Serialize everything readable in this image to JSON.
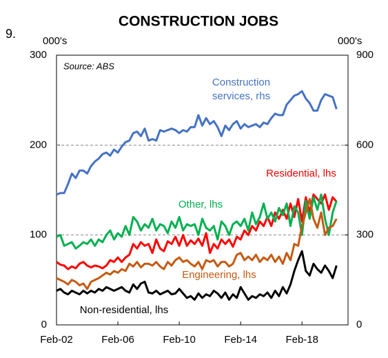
{
  "chart_data": {
    "type": "line",
    "number": "9.",
    "title": "CONSTRUCTION JOBS",
    "y_unit": "000's",
    "y2_unit": "000's",
    "source": "Source: ABS",
    "categories": [
      "Feb-02",
      null,
      null,
      null,
      null,
      null,
      null,
      null,
      null,
      null,
      null,
      null,
      null,
      null,
      null,
      null,
      "Feb-06",
      null,
      null,
      null,
      null,
      null,
      null,
      null,
      null,
      null,
      null,
      null,
      null,
      null,
      null,
      null,
      "Feb-10",
      null,
      null,
      null,
      null,
      null,
      null,
      null,
      null,
      null,
      null,
      null,
      null,
      null,
      null,
      null,
      "Feb-14",
      null,
      null,
      null,
      null,
      null,
      null,
      null,
      null,
      null,
      null,
      null,
      null,
      null,
      null,
      null,
      "Feb-18",
      null,
      null,
      null,
      null,
      null,
      null,
      null,
      null,
      null,
      null,
      null,
      null
    ],
    "ylim": [
      0,
      300
    ],
    "yticks": [
      0,
      100,
      200,
      300
    ],
    "y2lim": [
      0,
      900
    ],
    "y2ticks": [
      0,
      300,
      600,
      900
    ],
    "grid": true,
    "series": [
      {
        "name": "Construction services, rhs",
        "color": "#4472c4",
        "axis": "y2",
        "values": [
          435,
          440,
          440,
          470,
          505,
          490,
          515,
          515,
          505,
          530,
          545,
          555,
          570,
          575,
          565,
          585,
          575,
          595,
          610,
          615,
          640,
          645,
          630,
          655,
          615,
          620,
          615,
          650,
          645,
          650,
          655,
          650,
          640,
          650,
          645,
          660,
          660,
          700,
          665,
          690,
          670,
          680,
          660,
          630,
          665,
          650,
          670,
          680,
          655,
          670,
          660,
          665,
          670,
          660,
          675,
          670,
          690,
          705,
          700,
          700,
          735,
          750,
          765,
          770,
          780,
          755,
          740,
          715,
          715,
          750,
          770,
          765,
          760,
          720,
          null,
          null,
          null
        ]
      },
      {
        "name": "Residential, lhs",
        "color": "#ff0000",
        "values": [
          70,
          67,
          66,
          62,
          65,
          63,
          68,
          70,
          66,
          64,
          66,
          65,
          63,
          66,
          72,
          70,
          75,
          70,
          75,
          78,
          90,
          85,
          92,
          88,
          90,
          80,
          95,
          85,
          82,
          93,
          90,
          98,
          88,
          100,
          88,
          94,
          90,
          96,
          88,
          102,
          80,
          90,
          85,
          95,
          90,
          95,
          87,
          98,
          95,
          105,
          100,
          110,
          105,
          115,
          110,
          120,
          110,
          125,
          118,
          128,
          118,
          135,
          120,
          140,
          115,
          142,
          125,
          145,
          140,
          135,
          145,
          128,
          142,
          137,
          null,
          null,
          null
        ]
      },
      {
        "name": "Other, lhs",
        "color": "#00b050",
        "values": [
          98,
          100,
          88,
          90,
          92,
          85,
          88,
          92,
          90,
          95,
          88,
          95,
          92,
          100,
          105,
          95,
          102,
          98,
          110,
          100,
          120,
          115,
          105,
          112,
          108,
          118,
          105,
          112,
          110,
          102,
          115,
          108,
          120,
          105,
          112,
          110,
          112,
          100,
          118,
          108,
          105,
          110,
          95,
          115,
          110,
          100,
          112,
          115,
          110,
          118,
          105,
          125,
          112,
          120,
          135,
          118,
          125,
          115,
          130,
          122,
          135,
          110,
          132,
          125,
          100,
          138,
          118,
          142,
          128,
          145,
          118,
          100,
          125,
          138,
          null,
          null,
          null
        ]
      },
      {
        "name": "Engineering, lhs",
        "color": "#c55a11",
        "values": [
          52,
          50,
          48,
          45,
          50,
          48,
          44,
          46,
          40,
          48,
          50,
          52,
          55,
          58,
          56,
          60,
          58,
          62,
          60,
          68,
          65,
          70,
          64,
          68,
          68,
          66,
          70,
          65,
          62,
          70,
          66,
          72,
          75,
          70,
          72,
          68,
          65,
          70,
          62,
          72,
          70,
          72,
          65,
          70,
          70,
          65,
          68,
          78,
          80,
          72,
          76,
          72,
          78,
          70,
          75,
          72,
          78,
          70,
          76,
          68,
          80,
          72,
          90,
          88,
          110,
          125,
          140,
          118,
          108,
          125,
          100,
          108,
          110,
          118,
          null,
          null,
          null
        ]
      },
      {
        "name": "Non-residential, lhs",
        "color": "#000000",
        "values": [
          38,
          40,
          36,
          34,
          38,
          36,
          34,
          38,
          35,
          38,
          36,
          40,
          38,
          42,
          40,
          38,
          40,
          42,
          38,
          36,
          45,
          40,
          46,
          48,
          36,
          35,
          38,
          34,
          36,
          38,
          34,
          35,
          40,
          35,
          30,
          32,
          28,
          35,
          30,
          34,
          32,
          38,
          35,
          30,
          36,
          28,
          34,
          30,
          42,
          35,
          28,
          32,
          30,
          34,
          32,
          36,
          30,
          38,
          32,
          42,
          35,
          45,
          60,
          72,
          82,
          60,
          55,
          68,
          62,
          58,
          66,
          60,
          52,
          66,
          null,
          null,
          null
        ]
      }
    ]
  }
}
